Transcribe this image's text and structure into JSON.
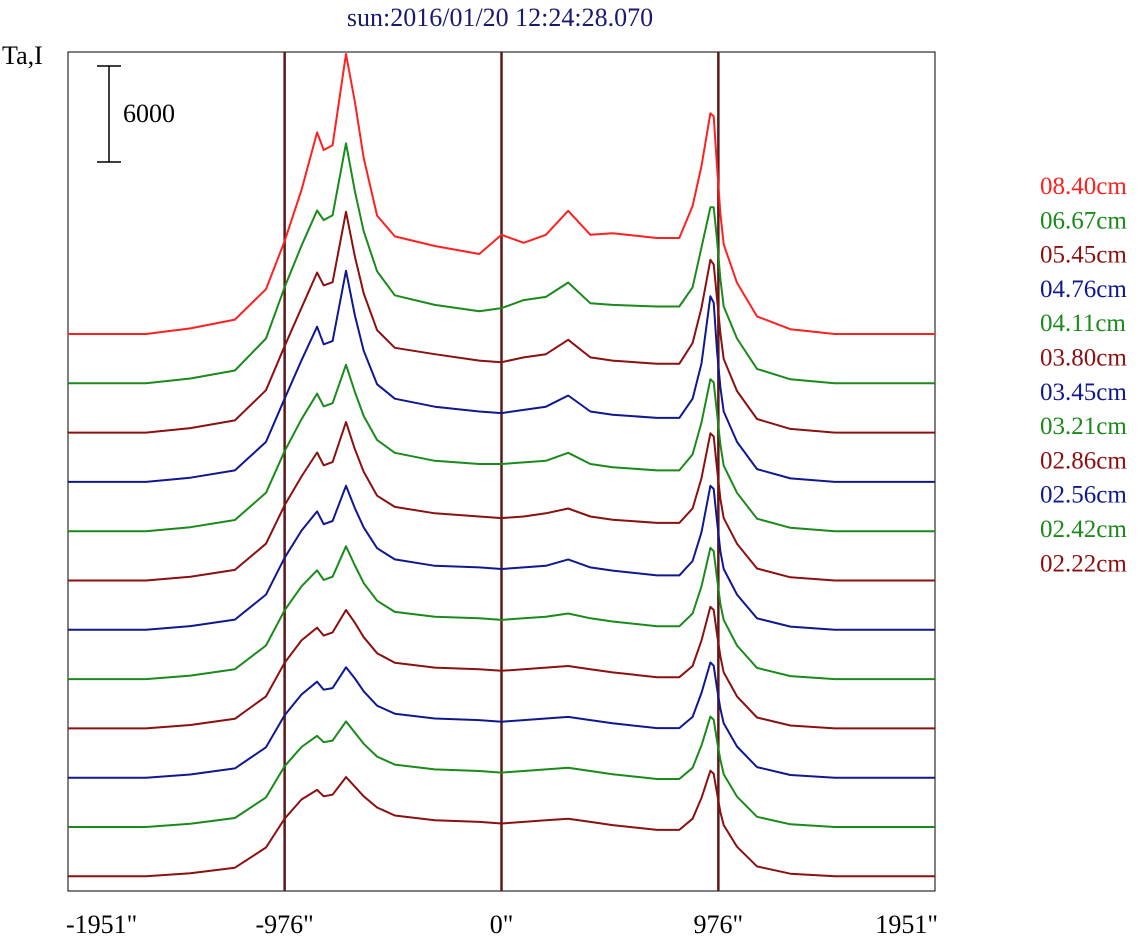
{
  "chart_data": {
    "type": "line",
    "title": "sun:2016/01/20 12:24:28.070",
    "ylabel": "Ta,I",
    "scale_bar_label": "6000",
    "scale_bar_value": 6000,
    "xlim": [
      -1951,
      1951
    ],
    "x_ticks": [
      {
        "value": -1951,
        "label": "-1951\""
      },
      {
        "value": -976,
        "label": "-976\""
      },
      {
        "value": 0,
        "label": "0\""
      },
      {
        "value": 976,
        "label": "976\""
      },
      {
        "value": 1951,
        "label": "1951\""
      }
    ],
    "vertical_markers": [
      -976,
      0,
      976
    ],
    "legend_position": "right",
    "colors": {
      "red": "#ff2020",
      "green": "#1a8a1a",
      "maroon": "#8b1010",
      "blue": "#101890",
      "marker": "#5a1a1a",
      "title": "#1a1a6e"
    },
    "legend": [
      {
        "label": "08.40cm",
        "color": "#ff2020"
      },
      {
        "label": "06.67cm",
        "color": "#1a8a1a"
      },
      {
        "label": "05.45cm",
        "color": "#8b1010"
      },
      {
        "label": "04.76cm",
        "color": "#101890"
      },
      {
        "label": "04.11cm",
        "color": "#1a8a1a"
      },
      {
        "label": "03.80cm",
        "color": "#8b1010"
      },
      {
        "label": "03.45cm",
        "color": "#101890"
      },
      {
        "label": "03.21cm",
        "color": "#1a8a1a"
      },
      {
        "label": "02.86cm",
        "color": "#8b1010"
      },
      {
        "label": "02.56cm",
        "color": "#101890"
      },
      {
        "label": "02.42cm",
        "color": "#1a8a1a"
      },
      {
        "label": "02.22cm",
        "color": "#8b1010"
      }
    ],
    "profile_x": [
      -1951,
      -1600,
      -1400,
      -1200,
      -1060,
      -976,
      -900,
      -830,
      -800,
      -760,
      -700,
      -660,
      -620,
      -560,
      -480,
      -300,
      -100,
      0,
      100,
      200,
      300,
      400,
      500,
      700,
      800,
      860,
      900,
      940,
      955,
      970,
      985,
      1000,
      1060,
      1150,
      1300,
      1500,
      1951
    ],
    "series": [
      {
        "label": "08.40cm",
        "color": "#ff2020",
        "baseline": 0,
        "profile": [
          0,
          0,
          350,
          900,
          2800,
          5800,
          9000,
          12600,
          11500,
          11800,
          17500,
          14500,
          11000,
          7400,
          6100,
          5500,
          5000,
          6200,
          5700,
          6200,
          7700,
          6200,
          6300,
          6000,
          6000,
          8000,
          10500,
          13800,
          13600,
          10500,
          7500,
          5600,
          3200,
          1100,
          300,
          0,
          0
        ]
      },
      {
        "label": "06.67cm",
        "color": "#1a8a1a",
        "baseline": 0,
        "profile": [
          0,
          0,
          300,
          800,
          2800,
          6000,
          8600,
          10800,
          10200,
          10500,
          15000,
          12000,
          9500,
          7000,
          5500,
          4900,
          4500,
          4700,
          5200,
          5400,
          6300,
          5000,
          4900,
          4800,
          4800,
          6000,
          8500,
          11000,
          11000,
          9000,
          6500,
          4800,
          2800,
          900,
          250,
          0,
          0
        ]
      },
      {
        "label": "05.45cm",
        "color": "#8b1010",
        "baseline": 0,
        "profile": [
          0,
          0,
          280,
          760,
          2650,
          5400,
          7800,
          10000,
          9200,
          9400,
          13800,
          11000,
          8700,
          6400,
          5300,
          4900,
          4500,
          4400,
          4700,
          4900,
          5800,
          4700,
          4500,
          4300,
          4300,
          5600,
          7800,
          10800,
          10500,
          8400,
          6200,
          4600,
          2600,
          850,
          230,
          0,
          0
        ]
      },
      {
        "label": "04.76cm",
        "color": "#101890",
        "baseline": 0,
        "profile": [
          0,
          0,
          260,
          720,
          2500,
          5200,
          7600,
          9700,
          8600,
          8800,
          13200,
          10400,
          8200,
          6100,
          5200,
          4700,
          4400,
          4300,
          4500,
          4700,
          5400,
          4400,
          4200,
          4000,
          4000,
          5200,
          7400,
          11600,
          11200,
          8200,
          5900,
          4400,
          2500,
          800,
          220,
          0,
          0
        ]
      },
      {
        "label": "04.11cm",
        "color": "#1a8a1a",
        "baseline": 0,
        "profile": [
          0,
          0,
          250,
          700,
          2400,
          5000,
          7000,
          8600,
          7800,
          8000,
          10400,
          8700,
          7200,
          5700,
          4900,
          4400,
          4200,
          4200,
          4300,
          4400,
          4900,
          4200,
          4000,
          3800,
          3800,
          4800,
          6800,
          9500,
          9300,
          7400,
          5400,
          4100,
          2400,
          780,
          210,
          0,
          0
        ]
      },
      {
        "label": "03.80cm",
        "color": "#8b1010",
        "baseline": 0,
        "profile": [
          0,
          0,
          240,
          660,
          2300,
          4700,
          6500,
          8000,
          7200,
          7400,
          9900,
          8200,
          6800,
          5300,
          4600,
          4200,
          4000,
          3900,
          4000,
          4200,
          4500,
          4000,
          3800,
          3600,
          3600,
          4500,
          6400,
          9200,
          9000,
          7000,
          5100,
          3900,
          2300,
          750,
          200,
          0,
          0
        ]
      },
      {
        "label": "03.45cm",
        "color": "#101890",
        "baseline": 0,
        "profile": [
          0,
          0,
          230,
          640,
          2200,
          4500,
          6200,
          7400,
          6600,
          6800,
          9000,
          7600,
          6400,
          5100,
          4400,
          4000,
          3900,
          3800,
          3900,
          4000,
          4400,
          3900,
          3700,
          3400,
          3400,
          4300,
          6100,
          9000,
          8800,
          6800,
          4900,
          3800,
          2200,
          720,
          200,
          0,
          0
        ]
      },
      {
        "label": "03.21cm",
        "color": "#1a8a1a",
        "baseline": 0,
        "profile": [
          0,
          0,
          220,
          620,
          2100,
          4300,
          5800,
          6800,
          6200,
          6400,
          8300,
          7100,
          6000,
          4900,
          4200,
          3900,
          3800,
          3700,
          3800,
          3900,
          4100,
          3800,
          3600,
          3300,
          3300,
          4100,
          5800,
          8200,
          8000,
          6300,
          4700,
          3700,
          2100,
          700,
          190,
          0,
          0
        ]
      },
      {
        "label": "02.86cm",
        "color": "#8b1010",
        "baseline": 0,
        "profile": [
          0,
          0,
          210,
          600,
          2000,
          4100,
          5500,
          6300,
          5800,
          6000,
          7400,
          6600,
          5700,
          4700,
          4100,
          3800,
          3700,
          3600,
          3700,
          3800,
          3900,
          3700,
          3500,
          3200,
          3200,
          3900,
          5500,
          7600,
          7400,
          5900,
          4500,
          3500,
          2000,
          680,
          180,
          0,
          0
        ]
      },
      {
        "label": "02.56cm",
        "color": "#101890",
        "baseline": 0,
        "profile": [
          0,
          0,
          200,
          580,
          1900,
          3900,
          5200,
          6000,
          5500,
          5600,
          6900,
          6200,
          5400,
          4500,
          4000,
          3700,
          3600,
          3500,
          3600,
          3700,
          3800,
          3600,
          3400,
          3100,
          3100,
          3800,
          5300,
          7200,
          7000,
          5600,
          4300,
          3400,
          1950,
          660,
          170,
          0,
          0
        ]
      },
      {
        "label": "02.42cm",
        "color": "#1a8a1a",
        "baseline": 0,
        "profile": [
          0,
          0,
          200,
          560,
          1850,
          3800,
          5000,
          5700,
          5300,
          5400,
          6600,
          5900,
          5200,
          4400,
          3900,
          3600,
          3500,
          3400,
          3500,
          3600,
          3700,
          3500,
          3300,
          3000,
          3000,
          3700,
          5100,
          6900,
          6700,
          5400,
          4200,
          3300,
          1900,
          640,
          170,
          0,
          0
        ]
      },
      {
        "label": "02.22cm",
        "color": "#8b1010",
        "baseline": 0,
        "profile": [
          0,
          0,
          190,
          540,
          1800,
          3600,
          4800,
          5400,
          5000,
          5100,
          6200,
          5600,
          5000,
          4300,
          3800,
          3500,
          3400,
          3300,
          3400,
          3500,
          3600,
          3400,
          3200,
          2900,
          2900,
          3600,
          4900,
          6600,
          6400,
          5200,
          4000,
          3200,
          1850,
          620,
          160,
          0,
          0
        ]
      }
    ]
  }
}
